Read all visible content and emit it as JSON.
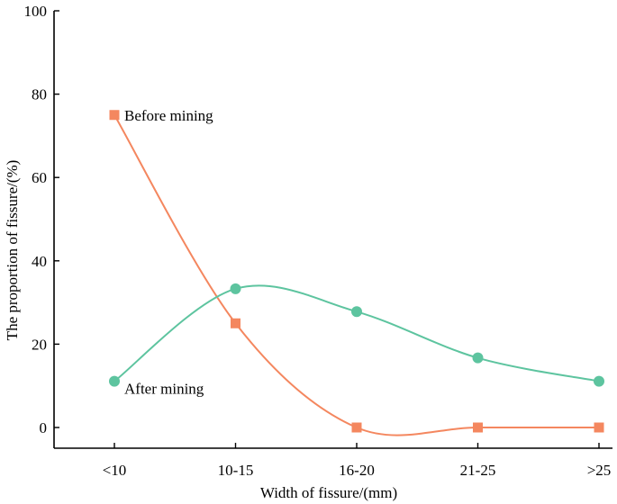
{
  "chart_data": {
    "type": "line",
    "title": "",
    "xlabel": "Width of fissure/(mm)",
    "ylabel": "The proportion of fissure/(%)",
    "categories": [
      "<10",
      "10-15",
      "16-20",
      "21-25",
      ">25"
    ],
    "ylim": [
      0,
      100
    ],
    "yticks": [
      0,
      20,
      40,
      60,
      80,
      100
    ],
    "series": [
      {
        "name": "Before mining",
        "color": "#f4875f",
        "marker": "square",
        "values": [
          75,
          25,
          0,
          0,
          0
        ]
      },
      {
        "name": "After mining",
        "color": "#5dc49f",
        "marker": "circle",
        "values": [
          11.1,
          33.3,
          27.8,
          16.7,
          11.1
        ]
      }
    ]
  }
}
